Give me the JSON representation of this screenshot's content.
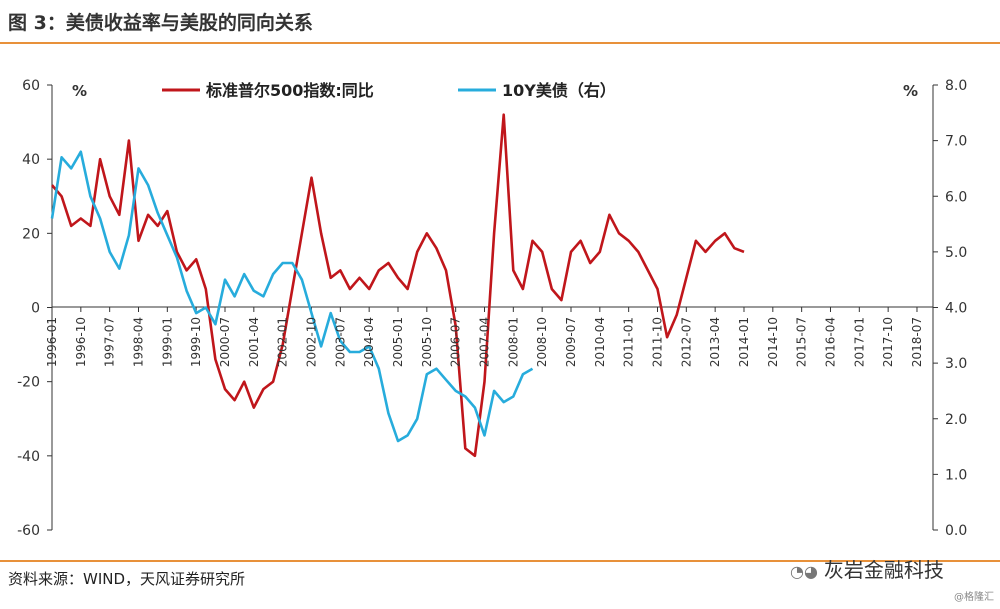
{
  "header": {
    "title": "图 3：美债收益率与美股的同向关系"
  },
  "footer": {
    "source": "资料来源：WIND，天风证券研究所"
  },
  "watermark": {
    "brand": "灰岩金融科技",
    "icon": "wechat-icon",
    "sub": "@格隆汇"
  },
  "colors": {
    "sp500": "#c0161b",
    "treasury": "#27acdc",
    "accent_rule": "#e8913a"
  },
  "chart_data": {
    "type": "line",
    "left_unit": "%",
    "right_unit": "%",
    "ylim_left": [
      -60,
      60
    ],
    "ylim_right": [
      0,
      8
    ],
    "yticks_left": [
      "60",
      "40",
      "20",
      "0",
      "-20",
      "-40",
      "-60"
    ],
    "yticks_right": [
      "8.0",
      "7.0",
      "6.0",
      "5.0",
      "4.0",
      "3.0",
      "2.0",
      "1.0",
      "0.0"
    ],
    "xticks": [
      "1996-01",
      "1996-10",
      "1997-07",
      "1998-04",
      "1999-01",
      "1999-10",
      "2000-07",
      "2001-04",
      "2002-01",
      "2002-10",
      "2003-07",
      "2004-04",
      "2005-01",
      "2005-10",
      "2006-07",
      "2007-04",
      "2008-01",
      "2008-10",
      "2009-07",
      "2010-04",
      "2011-01",
      "2011-10",
      "2012-07",
      "2013-04",
      "2014-01",
      "2014-10",
      "2015-07",
      "2016-04",
      "2017-01",
      "2017-10",
      "2018-07"
    ],
    "legend_placement": "top-center",
    "series": [
      {
        "name": "标准普尔500指数:同比",
        "axis": "left",
        "x_start": "1996-01",
        "step_months": 3,
        "values": [
          33,
          30,
          22,
          24,
          22,
          40,
          30,
          25,
          45,
          18,
          25,
          22,
          26,
          15,
          10,
          13,
          5,
          -14,
          -22,
          -25,
          -20,
          -27,
          -22,
          -20,
          -10,
          5,
          20,
          35,
          20,
          8,
          10,
          5,
          8,
          5,
          10,
          12,
          8,
          5,
          15,
          20,
          16,
          10,
          -5,
          -38,
          -40,
          -20,
          20,
          52,
          10,
          5,
          18,
          15,
          5,
          2,
          15,
          18,
          12,
          15,
          25,
          20,
          18,
          15,
          10,
          5,
          -8,
          -2,
          8,
          18,
          15,
          18,
          20,
          16,
          15
        ]
      },
      {
        "name": "10Y美债（右）",
        "axis": "right",
        "x_start": "1996-01",
        "step_months": 3,
        "values": [
          5.6,
          6.7,
          6.5,
          6.8,
          6.0,
          5.6,
          5.0,
          4.7,
          5.3,
          6.5,
          6.2,
          5.7,
          5.3,
          4.9,
          4.3,
          3.9,
          4.0,
          3.7,
          4.5,
          4.2,
          4.6,
          4.3,
          4.2,
          4.6,
          4.8,
          4.8,
          4.5,
          3.9,
          3.3,
          3.9,
          3.4,
          3.2,
          3.2,
          3.3,
          2.9,
          2.1,
          1.6,
          1.7,
          2.0,
          2.8,
          2.9,
          2.7,
          2.5,
          2.4,
          2.2,
          1.7,
          2.5,
          2.3,
          2.4,
          2.8,
          2.9
        ]
      }
    ]
  }
}
